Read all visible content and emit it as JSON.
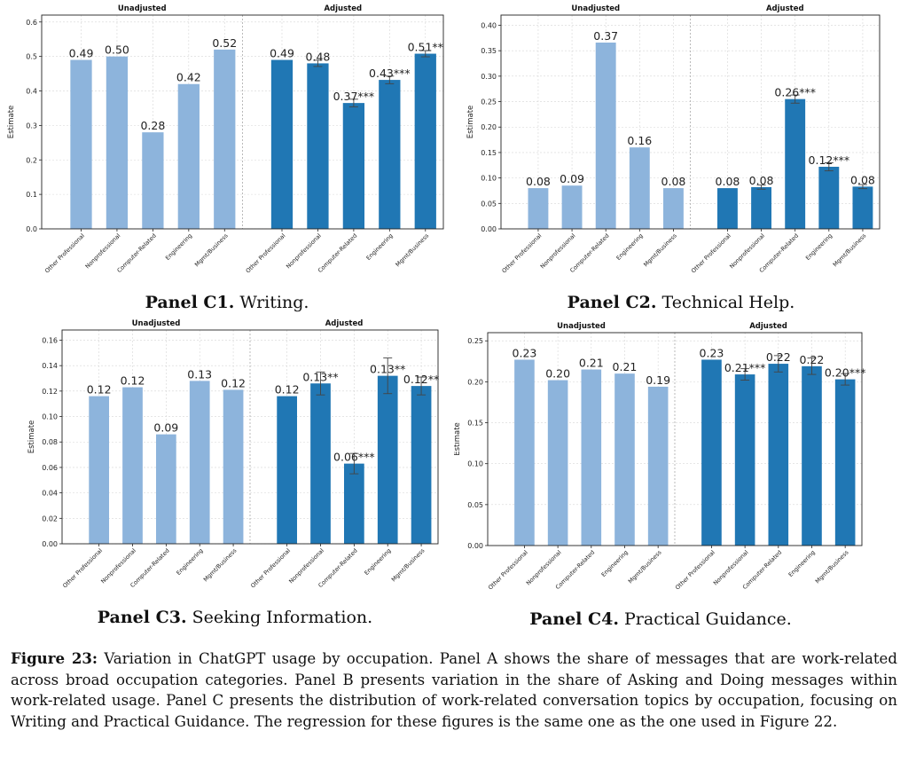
{
  "chart_data": [
    {
      "type": "bar",
      "panel_label": "Panel C1.",
      "panel_title": "Writing.",
      "facets": [
        "Unadjusted",
        "Adjusted"
      ],
      "ylabel": "Estimate",
      "ylim": [
        0,
        0.62
      ],
      "yticks": [
        0.0,
        0.1,
        0.2,
        0.3,
        0.4,
        0.5,
        0.6
      ],
      "tick_decimals": 1,
      "grid": true,
      "categories": [
        "Other Professional",
        "Nonprofessional",
        "Computer-Related",
        "Engineering",
        "Mgmt/Business"
      ],
      "series": [
        {
          "values": [
            0.49,
            0.5,
            0.28,
            0.42,
            0.52
          ],
          "labels": [
            "0.49",
            "0.50",
            "0.28",
            "0.42",
            "0.52"
          ],
          "error": [
            0,
            0,
            0,
            0,
            0
          ]
        },
        {
          "values": [
            0.49,
            0.48,
            0.365,
            0.432,
            0.508
          ],
          "labels": [
            "0.49",
            "0.48",
            "0.37***",
            "0.43***",
            "0.51**"
          ],
          "error": [
            0,
            0.009,
            0.011,
            0.011,
            0.009
          ]
        }
      ]
    },
    {
      "type": "bar",
      "panel_label": "Panel C2.",
      "panel_title": "Technical Help.",
      "facets": [
        "Unadjusted",
        "Adjusted"
      ],
      "ylabel": "Estimate",
      "ylim": [
        0,
        0.42
      ],
      "yticks": [
        0.0,
        0.05,
        0.1,
        0.15,
        0.2,
        0.25,
        0.3,
        0.35,
        0.4
      ],
      "tick_decimals": 2,
      "grid": true,
      "categories": [
        "Other Professional",
        "Nonprofessional",
        "Computer-Related",
        "Engineering",
        "Mgmt/Business"
      ],
      "series": [
        {
          "values": [
            0.08,
            0.085,
            0.366,
            0.16,
            0.08
          ],
          "labels": [
            "0.08",
            "0.09",
            "0.37",
            "0.16",
            "0.08"
          ],
          "error": [
            0,
            0,
            0,
            0,
            0
          ]
        },
        {
          "values": [
            0.08,
            0.082,
            0.255,
            0.122,
            0.083
          ],
          "labels": [
            "0.08",
            "0.08",
            "0.26***",
            "0.12***",
            "0.08"
          ],
          "error": [
            0,
            0.004,
            0.008,
            0.008,
            0.004
          ]
        }
      ]
    },
    {
      "type": "bar",
      "panel_label": "Panel C3.",
      "panel_title": "Seeking Information.",
      "facets": [
        "Unadjusted",
        "Adjusted"
      ],
      "ylabel": "Estimate",
      "ylim": [
        0,
        0.168
      ],
      "yticks": [
        0.0,
        0.02,
        0.04,
        0.06,
        0.08,
        0.1,
        0.12,
        0.14,
        0.16
      ],
      "tick_decimals": 2,
      "grid": true,
      "categories": [
        "Other Professional",
        "Nonprofessional",
        "Computer-Related",
        "Engineering",
        "Mgmt/Business"
      ],
      "series": [
        {
          "values": [
            0.116,
            0.123,
            0.086,
            0.128,
            0.121
          ],
          "labels": [
            "0.12",
            "0.12",
            "0.09",
            "0.13",
            "0.12"
          ],
          "error": [
            0,
            0,
            0,
            0,
            0
          ]
        },
        {
          "values": [
            0.116,
            0.126,
            0.063,
            0.132,
            0.124
          ],
          "labels": [
            "0.12",
            "0.13**",
            "0.06***",
            "0.13**",
            "0.12**"
          ],
          "error": [
            0,
            0.009,
            0.008,
            0.014,
            0.007
          ]
        }
      ]
    },
    {
      "type": "bar",
      "panel_label": "Panel C4.",
      "panel_title": "Practical Guidance.",
      "facets": [
        "Unadjusted",
        "Adjusted"
      ],
      "ylabel": "Estimate",
      "ylim": [
        0,
        0.26
      ],
      "yticks": [
        0.0,
        0.05,
        0.1,
        0.15,
        0.2,
        0.25
      ],
      "tick_decimals": 2,
      "grid": true,
      "categories": [
        "Other Professional",
        "Nonprofessional",
        "Computer-Related",
        "Engineering",
        "Mgmt/Business"
      ],
      "series": [
        {
          "values": [
            0.227,
            0.202,
            0.215,
            0.21,
            0.194
          ],
          "labels": [
            "0.23",
            "0.20",
            "0.21",
            "0.21",
            "0.19"
          ],
          "error": [
            0,
            0,
            0,
            0,
            0
          ]
        },
        {
          "values": [
            0.227,
            0.209,
            0.222,
            0.219,
            0.203
          ],
          "labels": [
            "0.23",
            "0.21***",
            "0.22",
            "0.22",
            "0.20***"
          ],
          "error": [
            0,
            0.007,
            0.01,
            0.01,
            0.007
          ]
        }
      ]
    }
  ],
  "colors": {
    "unadjusted": "#8db4dc",
    "adjusted": "#2077b4",
    "grid": "#d6d6d6"
  },
  "caption": {
    "label": "Figure 23:",
    "text": "Variation in ChatGPT usage by occupation. Panel A shows the share of messages that are work-related across broad occupation categories. Panel B presents variation in the share of Asking and Doing messages within work-related usage. Panel C presents the distribution of work-related conversation topics by occupation, focusing on Writing and Practical Guidance. The regression for these figures is the same one as the one used in Figure 22."
  }
}
